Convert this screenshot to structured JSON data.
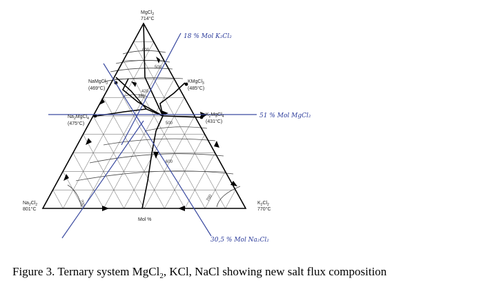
{
  "vertices": {
    "top": {
      "name": "MgCl",
      "sub": "2",
      "temp": "714°C"
    },
    "left": {
      "name": "Na",
      "sub": "2",
      "tail": "Cl",
      "sub2": "2",
      "temp": "801°C"
    },
    "right": {
      "name": "K",
      "sub": "2",
      "tail": "Cl",
      "sub2": "2",
      "temp": "770°C"
    }
  },
  "compounds": {
    "namgcl3": {
      "line1": "NaMgCl",
      "sub": "3",
      "line2": "(469°C)"
    },
    "kmgcl3": {
      "line1": "KMgCl",
      "sub": "3",
      "line2": "(485°C)"
    },
    "na2mgcl4": {
      "line1": "Na",
      "sub": "2",
      "mid": "MgCl",
      "sub2": "4",
      "line2": "(475°C)"
    },
    "k2mgcl4": {
      "line1": "K",
      "sub": "2",
      "mid": "MgCl",
      "sub2": "4",
      "line2": "(431°C)"
    }
  },
  "isotherms": {
    "t600_top": "600",
    "t500_top": "500",
    "t420": "420",
    "t385": "385",
    "t500_mid": "500",
    "t600_mid": "600",
    "t700_left": "700",
    "t700_right": "700"
  },
  "axis_label": "Mol %",
  "annotations": {
    "k2cl2": "18 % Mol K₂Cl₂",
    "mgcl2": "51 % Mol MgCl₂",
    "na2cl2": "30,5 % Mol Na₂Cl₂"
  },
  "caption": {
    "main": "Figure 3. Ternary system MgCl",
    "sub": "2",
    "rest": ", KCl, NaCl showing new salt flux composition"
  },
  "colors": {
    "annotation_line": "#3a4aa0",
    "diagram": "#000000"
  }
}
